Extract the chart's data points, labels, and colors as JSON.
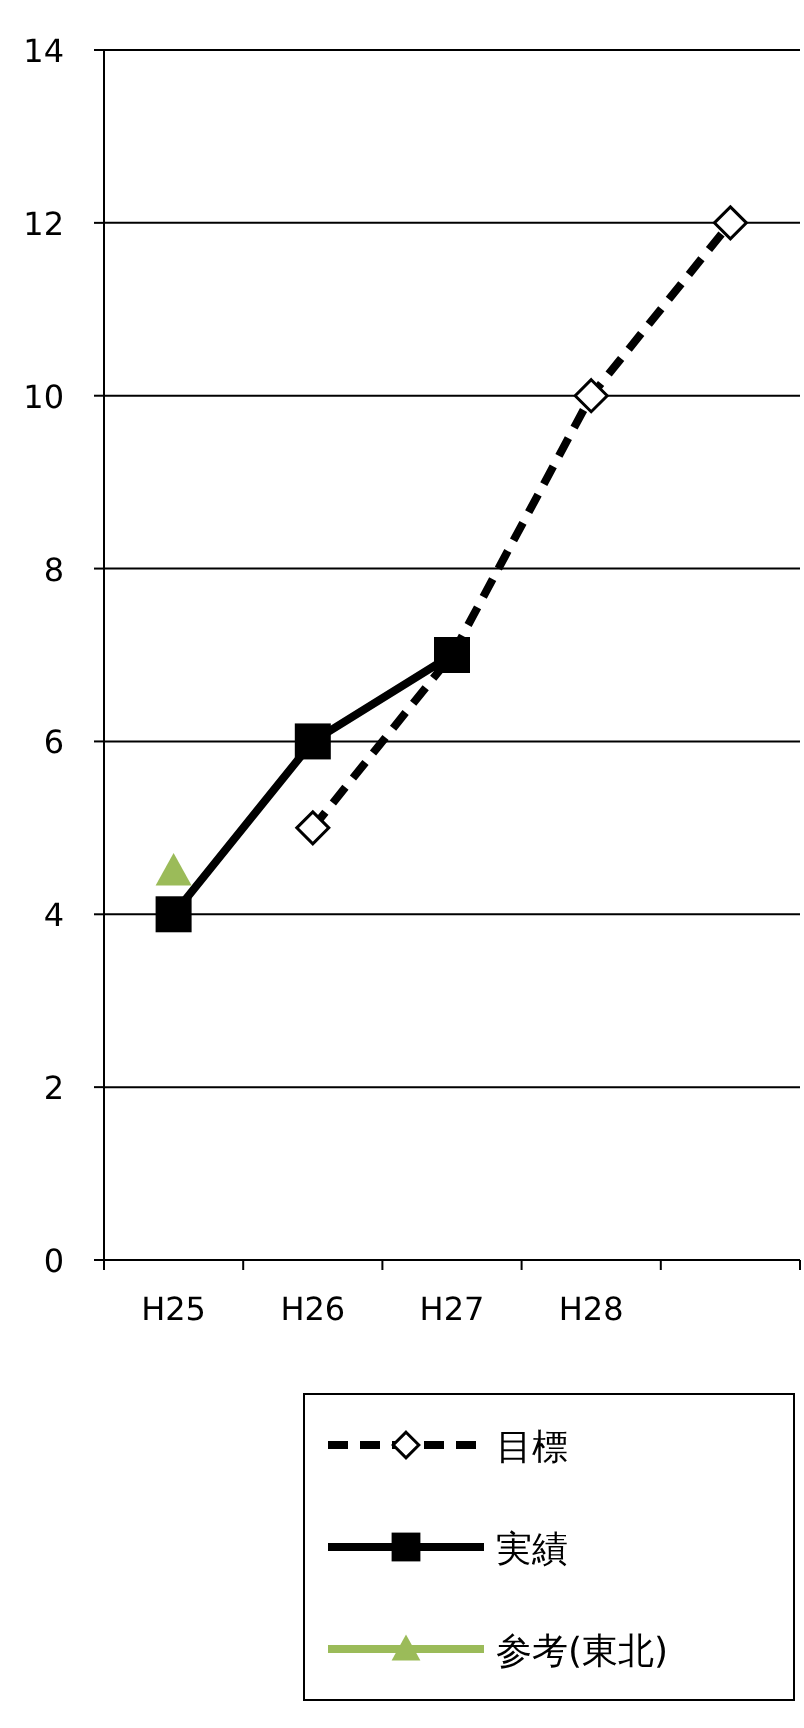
{
  "chart_data": {
    "type": "line",
    "categories": [
      "H25",
      "H26",
      "H27",
      "H28",
      null
    ],
    "series": [
      {
        "name": "目標",
        "color": "#000000",
        "values": [
          null,
          5,
          7,
          10,
          12
        ],
        "marker": "diamond",
        "line_style": "dashed"
      },
      {
        "name": "実績",
        "color": "#000000",
        "values": [
          4,
          6,
          7,
          null,
          null
        ],
        "marker": "square",
        "line_style": "solid"
      },
      {
        "name": "参考(東北)",
        "color": "#9bbb59",
        "values": [
          4.5,
          null,
          null,
          null,
          null
        ],
        "marker": "triangle",
        "line_style": "solid"
      }
    ],
    "ylim": [
      0,
      14
    ],
    "yticks": [
      0,
      2,
      4,
      6,
      8,
      10,
      12,
      14
    ],
    "grid": "y",
    "legend": "bottom right"
  }
}
